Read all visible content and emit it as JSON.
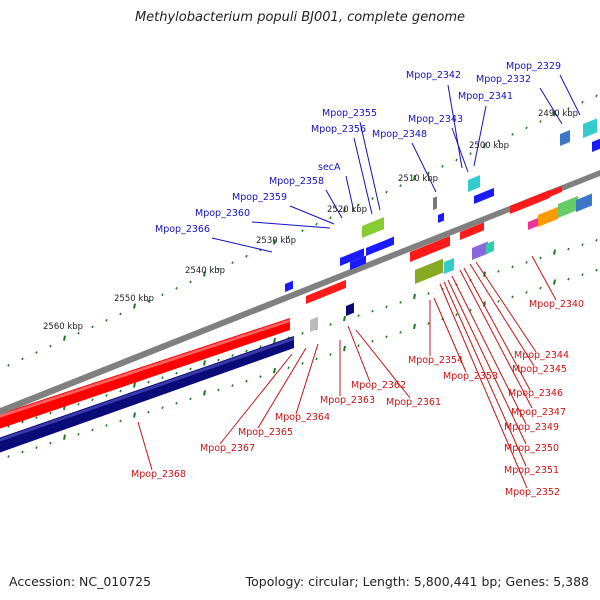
{
  "title": "Methylobacterium populi BJ001, complete genome",
  "footer": {
    "accession": "Accession: NC_010725",
    "summary": "Topology: circular; Length: 5,800,441 bp; Genes: 5,388"
  },
  "colors": {
    "forward_gene_label": "#1010c8",
    "reverse_gene_label": "#d01010",
    "tick": "#1f7a1f",
    "backbone": "#808080",
    "forward_cds": "#1a1aff",
    "reverse_cds": "#ff1a1a",
    "gc_skew_red": "#ff0000",
    "gc_skew_navy": "#0a0a78"
  },
  "kbp_labels": [
    "2490 kbp",
    "2500 kbp",
    "2510 kbp",
    "2520 kbp",
    "2530 kbp",
    "2540 kbp",
    "2550 kbp",
    "2560 kbp"
  ],
  "forward_labels": [
    "Mpop_2329",
    "Mpop_2332",
    "Mpop_2342",
    "Mpop_2341",
    "Mpop_2343",
    "Mpop_2348",
    "Mpop_2355",
    "Mpop_2356",
    "secA",
    "Mpop_2358",
    "Mpop_2359",
    "Mpop_2360",
    "Mpop_2366"
  ],
  "reverse_labels": [
    "Mpop_2340",
    "Mpop_2344",
    "Mpop_2345",
    "Mpop_2346",
    "Mpop_2347",
    "Mpop_2349",
    "Mpop_2350",
    "Mpop_2351",
    "Mpop_2352",
    "Mpop_2354",
    "Mpop_2353",
    "Mpop_2362",
    "Mpop_2361",
    "Mpop_2363",
    "Mpop_2364",
    "Mpop_2365",
    "Mpop_2367",
    "Mpop_2368"
  ]
}
